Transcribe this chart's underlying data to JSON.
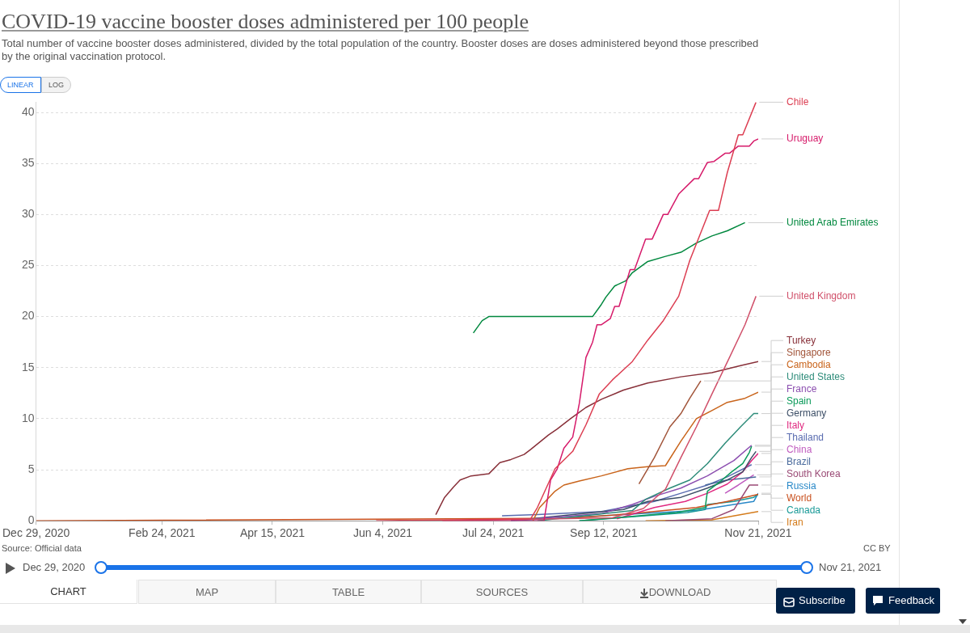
{
  "chart_data": {
    "type": "line",
    "title": "COVID-19 vaccine booster doses administered per 100 people",
    "subtitle": "Total number of vaccine booster doses administered, divided by the total population of the country. Booster doses are doses administered beyond those prescribed by the original vaccination protocol.",
    "annotations": [
      "Source: Official data",
      "CC BY",
      "LINEAR",
      "LOG",
      "Dec 29, 2020",
      "Nov 21, 2021",
      "CHART",
      "MAP",
      "TABLE",
      "SOURCES",
      "DOWNLOAD",
      "Subscribe",
      "Feedback"
    ],
    "xlim": [
      "2020-12-29",
      "2021-11-21"
    ],
    "xticks": [
      {
        "value": "2020-12-29",
        "label": "Dec 29, 2020"
      },
      {
        "value": "2021-02-24",
        "label": "Feb 24, 2021"
      },
      {
        "value": "2021-04-15",
        "label": "Apr 15, 2021"
      },
      {
        "value": "2021-06-04",
        "label": "Jun 4, 2021"
      },
      {
        "value": "2021-07-24",
        "label": "Jul 24, 2021"
      },
      {
        "value": "2021-09-12",
        "label": "Sep 12, 2021"
      },
      {
        "value": "2021-11-21",
        "label": "Nov 21, 2021"
      }
    ],
    "ylim": [
      0,
      41
    ],
    "yticks": [
      0,
      5,
      10,
      15,
      20,
      25,
      30,
      35,
      40
    ],
    "grid": "y",
    "legend": "right",
    "marker": "none",
    "series": [
      {
        "name": "Chile",
        "color": "#dc3e52",
        "x": [
          "2021-06-01",
          "2021-08-10",
          "2021-08-13",
          "2021-08-21",
          "2021-08-29",
          "2021-09-04",
          "2021-09-10",
          "2021-09-16",
          "2021-09-25",
          "2021-10-02",
          "2021-10-09",
          "2021-10-16",
          "2021-10-21",
          "2021-10-30",
          "2021-11-03",
          "2021-11-07",
          "2021-11-12",
          "2021-11-14",
          "2021-11-20"
        ],
        "values": [
          0,
          0.2,
          1.3,
          5.1,
          6.8,
          9.4,
          12.4,
          13.8,
          15.6,
          17.7,
          19.6,
          22.0,
          25.5,
          30.4,
          30.4,
          34.1,
          37.8,
          37.8,
          41.0
        ]
      },
      {
        "name": "Uruguay",
        "color": "#d61a6a",
        "x": [
          "2021-07-01",
          "2021-08-16",
          "2021-08-19",
          "2021-08-22",
          "2021-08-25",
          "2021-08-29",
          "2021-09-01",
          "2021-09-04",
          "2021-09-07",
          "2021-09-09",
          "2021-09-11",
          "2021-09-15",
          "2021-09-17",
          "2021-09-19",
          "2021-09-24",
          "2021-09-26",
          "2021-10-01",
          "2021-10-04",
          "2021-10-09",
          "2021-10-11",
          "2021-10-16",
          "2021-10-23",
          "2021-10-25",
          "2021-10-29",
          "2021-11-01",
          "2021-11-06",
          "2021-11-08",
          "2021-11-12",
          "2021-11-17",
          "2021-11-19",
          "2021-11-21"
        ],
        "values": [
          0,
          0,
          4.0,
          5.1,
          7.1,
          8.2,
          11.5,
          16.0,
          17.5,
          19.2,
          19.2,
          19.8,
          21.0,
          21.0,
          24.6,
          24.6,
          27.6,
          27.6,
          30.0,
          30.0,
          32.0,
          33.5,
          33.5,
          35.1,
          35.2,
          36.0,
          36.0,
          36.7,
          36.7,
          37.2,
          37.4
        ]
      },
      {
        "name": "United Arab Emirates",
        "color": "#00883e",
        "x": [
          "2021-07-15",
          "2021-07-19",
          "2021-07-22",
          "2021-09-07",
          "2021-09-11",
          "2021-09-13",
          "2021-09-17",
          "2021-09-22",
          "2021-09-25",
          "2021-10-02",
          "2021-10-10",
          "2021-10-17",
          "2021-10-24",
          "2021-10-31",
          "2021-11-07",
          "2021-11-15"
        ],
        "values": [
          18.4,
          19.6,
          20.0,
          20.0,
          21.2,
          21.9,
          23.0,
          23.5,
          24.3,
          25.4,
          25.9,
          26.3,
          27.2,
          27.9,
          28.4,
          29.2
        ]
      },
      {
        "name": "United Kingdom",
        "color": "#d0506a",
        "x": [
          "2021-07-01",
          "2021-09-16",
          "2021-09-30",
          "2021-10-10",
          "2021-10-17",
          "2021-10-24",
          "2021-10-31",
          "2021-11-08",
          "2021-11-15",
          "2021-11-20"
        ],
        "values": [
          0,
          0.3,
          1.2,
          3.1,
          6.2,
          9.2,
          12.4,
          16.0,
          19.2,
          22.0
        ]
      },
      {
        "name": "Turkey",
        "color": "#883039",
        "x": [
          "2021-06-28",
          "2021-07-02",
          "2021-07-06",
          "2021-07-09",
          "2021-07-14",
          "2021-07-22",
          "2021-07-27",
          "2021-08-01",
          "2021-08-07",
          "2021-08-10",
          "2021-08-18",
          "2021-08-22",
          "2021-08-28",
          "2021-09-04",
          "2021-09-11",
          "2021-09-21",
          "2021-10-02",
          "2021-10-17",
          "2021-10-31",
          "2021-11-13",
          "2021-11-21"
        ],
        "values": [
          0.6,
          2.3,
          3.3,
          4.0,
          4.4,
          4.6,
          5.7,
          6.0,
          6.5,
          7.0,
          8.4,
          9.0,
          10.0,
          11.1,
          11.9,
          12.8,
          13.5,
          14.1,
          14.5,
          15.2,
          15.6
        ]
      },
      {
        "name": "Singapore",
        "color": "#a2553a",
        "x": [
          "2021-09-28",
          "2021-10-05",
          "2021-10-12",
          "2021-10-17",
          "2021-10-21",
          "2021-10-26"
        ],
        "values": [
          3.6,
          6.2,
          9.2,
          10.5,
          12.0,
          13.7
        ]
      },
      {
        "name": "Cambodia",
        "color": "#c9641b",
        "x": [
          "2021-08-11",
          "2021-08-14",
          "2021-08-21",
          "2021-08-25",
          "2021-09-01",
          "2021-09-11",
          "2021-09-23",
          "2021-10-02",
          "2021-10-10",
          "2021-10-17",
          "2021-10-24",
          "2021-10-31",
          "2021-11-07",
          "2021-11-15",
          "2021-11-21"
        ],
        "values": [
          0,
          1.3,
          2.9,
          3.5,
          3.9,
          4.4,
          5.1,
          5.3,
          5.4,
          7.8,
          10.0,
          10.8,
          11.6,
          12.0,
          12.6
        ]
      },
      {
        "name": "United States",
        "color": "#2e8c7a",
        "x": [
          "2021-08-13",
          "2021-09-25",
          "2021-10-01",
          "2021-10-12",
          "2021-10-21",
          "2021-10-29",
          "2021-11-06",
          "2021-11-13",
          "2021-11-19",
          "2021-11-21"
        ],
        "values": [
          0,
          1.0,
          2.1,
          3.2,
          4.0,
          5.6,
          7.6,
          9.2,
          10.5,
          10.5
        ]
      },
      {
        "name": "France",
        "color": "#8c4fb0",
        "x": [
          "2021-08-01",
          "2021-09-11",
          "2021-09-25",
          "2021-10-05",
          "2021-10-17",
          "2021-10-29",
          "2021-11-10",
          "2021-11-18"
        ],
        "values": [
          0,
          0.7,
          1.6,
          2.4,
          3.2,
          4.4,
          5.9,
          7.4
        ]
      },
      {
        "name": "Spain",
        "color": "#0a9a5a",
        "x": [
          "2021-09-01",
          "2021-10-15",
          "2021-10-28",
          "2021-10-29",
          "2021-11-03",
          "2021-11-09",
          "2021-11-14",
          "2021-11-17",
          "2021-11-18"
        ],
        "values": [
          0,
          0.8,
          1.3,
          2.9,
          3.7,
          4.8,
          5.6,
          6.7,
          7.3
        ]
      },
      {
        "name": "Germany",
        "color": "#3c4e66",
        "x": [
          "2021-08-01",
          "2021-09-21",
          "2021-10-02",
          "2021-10-17",
          "2021-10-29",
          "2021-11-07",
          "2021-11-14",
          "2021-11-18",
          "2021-11-20"
        ],
        "values": [
          0,
          1.1,
          1.9,
          2.3,
          3.2,
          4.0,
          4.8,
          6.2,
          6.8
        ]
      },
      {
        "name": "Italy",
        "color": "#e02a80",
        "x": [
          "2021-09-18",
          "2021-10-05",
          "2021-10-19",
          "2021-10-29",
          "2021-11-07",
          "2021-11-14",
          "2021-11-18",
          "2021-11-21"
        ],
        "values": [
          0.2,
          1.3,
          1.9,
          2.7,
          3.6,
          4.8,
          5.9,
          6.6
        ]
      },
      {
        "name": "Brazil",
        "color": "#4a6a9c",
        "x": [
          "2021-10-28",
          "2021-11-07",
          "2021-11-20"
        ],
        "values": [
          3.5,
          4.0,
          4.3
        ]
      },
      {
        "name": "China",
        "color": "#c05cbf",
        "x": [
          "2021-11-06",
          "2021-11-12",
          "2021-11-19"
        ],
        "values": [
          2.7,
          3.5,
          4.5
        ]
      },
      {
        "name": "Thailand",
        "color": "#5a6cb0",
        "x": [
          "2021-07-28",
          "2021-08-13",
          "2021-09-11",
          "2021-10-05",
          "2021-10-17",
          "2021-10-29",
          "2021-11-07",
          "2021-11-18"
        ],
        "values": [
          0.5,
          0.6,
          0.9,
          1.9,
          2.7,
          3.5,
          4.3,
          5.5
        ]
      },
      {
        "name": "South Korea",
        "color": "#9a4a75",
        "x": [
          "2021-10-10",
          "2021-10-31",
          "2021-11-10",
          "2021-11-17",
          "2021-11-21"
        ],
        "values": [
          0,
          0.2,
          1.1,
          3.5,
          3.5
        ]
      },
      {
        "name": "World",
        "color": "#c8501e",
        "x": [
          "2020-12-29",
          "2021-08-28",
          "2021-09-25",
          "2021-10-24",
          "2021-11-07",
          "2021-11-21"
        ],
        "values": [
          0,
          0.25,
          0.7,
          1.3,
          1.9,
          2.6
        ]
      },
      {
        "name": "Canada",
        "color": "#1a9a98",
        "x": [
          "2021-09-01",
          "2021-10-20",
          "2021-10-28",
          "2021-10-29",
          "2021-11-10",
          "2021-11-19",
          "2021-11-21"
        ],
        "values": [
          0,
          0.8,
          1.1,
          1.6,
          1.9,
          2.3,
          2.6
        ]
      },
      {
        "name": "Russia",
        "color": "#2888c8",
        "x": [
          "2021-08-01",
          "2021-10-24",
          "2021-11-10",
          "2021-11-19",
          "2021-11-21"
        ],
        "values": [
          0,
          1.0,
          1.6,
          1.9,
          2.7
        ]
      },
      {
        "name": "Iran",
        "color": "#d47b1a",
        "x": [
          "2021-10-01",
          "2021-10-31",
          "2021-11-21"
        ],
        "values": [
          0,
          0.1,
          0.9
        ]
      }
    ]
  }
}
